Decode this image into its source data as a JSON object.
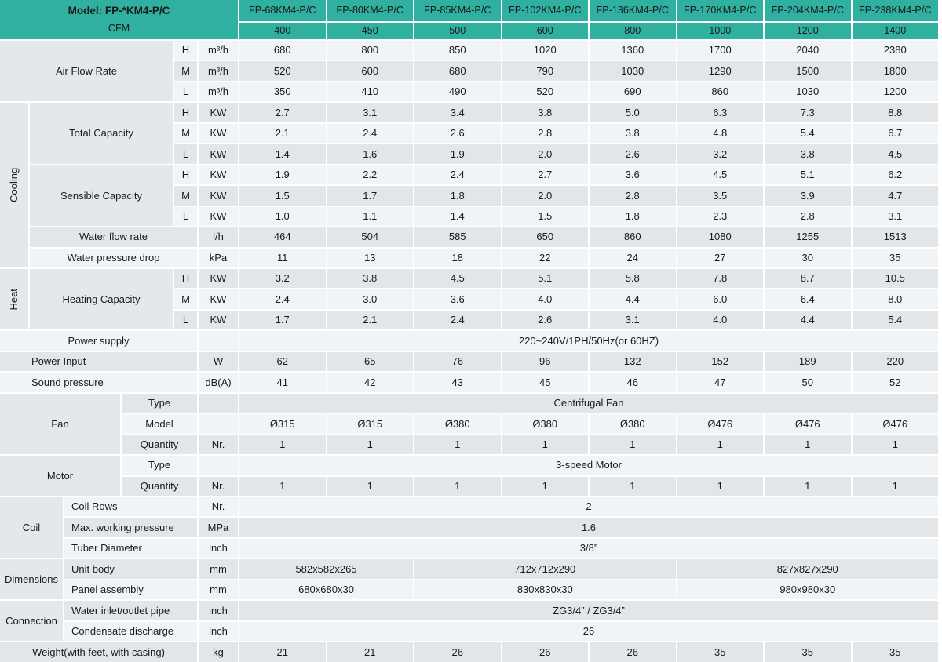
{
  "colors": {
    "header_teal": "#2FB0A0",
    "row_light": "#F0F4F6",
    "row_gray": "#E2E6E9",
    "label_gray": "#E4E8EB",
    "text": "#1A1A1A",
    "grid_line": "#FFFFFF"
  },
  "table": {
    "corner": {
      "model": "Model: FP-*KM4-P/C",
      "cfm": "CFM"
    },
    "model_columns": [
      "FP-68KM4-P/C",
      "FP-80KM4-P/C",
      "FP-85KM4-P/C",
      "FP-102KM4-P/C",
      "FP-136KM4-P/C",
      "FP-170KM4-P/C",
      "FP-204KM4-P/C",
      "FP-238KM4-P/C"
    ],
    "cfm_values": [
      "400",
      "450",
      "500",
      "600",
      "800",
      "1000",
      "1200",
      "1400"
    ],
    "rows": [
      {
        "label": "Air Flow Rate",
        "lspan": "l14",
        "lrows": 3,
        "sub": "H",
        "unit": "m³/h",
        "values": [
          "680",
          "800",
          "850",
          "1020",
          "1360",
          "1700",
          "2040",
          "2380"
        ]
      },
      {
        "sub": "M",
        "unit": "m³/h",
        "values": [
          "520",
          "600",
          "680",
          "790",
          "1030",
          "1290",
          "1500",
          "1800"
        ]
      },
      {
        "sub": "L",
        "unit": "m³/h",
        "values": [
          "350",
          "410",
          "490",
          "520",
          "690",
          "860",
          "1030",
          "1200"
        ]
      },
      {
        "vgroup": "Cooling",
        "vrows": 8,
        "label": "Total Capacity",
        "lspan": "l24",
        "lrows": 3,
        "sub": "H",
        "unit": "KW",
        "values": [
          "2.7",
          "3.1",
          "3.4",
          "3.8",
          "5.0",
          "6.3",
          "7.3",
          "8.8"
        ]
      },
      {
        "sub": "M",
        "unit": "KW",
        "values": [
          "2.1",
          "2.4",
          "2.6",
          "2.8",
          "3.8",
          "4.8",
          "5.4",
          "6.7"
        ]
      },
      {
        "sub": "L",
        "unit": "KW",
        "values": [
          "1.4",
          "1.6",
          "1.9",
          "2.0",
          "2.6",
          "3.2",
          "3.8",
          "4.5"
        ]
      },
      {
        "label": "Sensible Capacity",
        "lspan": "l24",
        "lrows": 3,
        "sub": "H",
        "unit": "KW",
        "values": [
          "1.9",
          "2.2",
          "2.4",
          "2.7",
          "3.6",
          "4.5",
          "5.1",
          "6.2"
        ]
      },
      {
        "sub": "M",
        "unit": "KW",
        "values": [
          "1.5",
          "1.7",
          "1.8",
          "2.0",
          "2.8",
          "3.5",
          "3.9",
          "4.7"
        ]
      },
      {
        "sub": "L",
        "unit": "KW",
        "values": [
          "1.0",
          "1.1",
          "1.4",
          "1.5",
          "1.8",
          "2.3",
          "2.8",
          "3.1"
        ]
      },
      {
        "label": "Water flow rate",
        "lspan": "l25",
        "unit": "l/h",
        "values": [
          "464",
          "504",
          "585",
          "650",
          "860",
          "1080",
          "1255",
          "1513"
        ]
      },
      {
        "label": "Water pressure drop",
        "lspan": "l25",
        "unit": "kPa",
        "values": [
          "11",
          "13",
          "18",
          "22",
          "24",
          "27",
          "30",
          "35"
        ]
      },
      {
        "vgroup": "Heat",
        "vrows": 3,
        "label": "Heating Capacity",
        "lspan": "l24",
        "lrows": 3,
        "sub": "H",
        "unit": "KW",
        "values": [
          "3.2",
          "3.8",
          "4.5",
          "5.1",
          "5.8",
          "7.8",
          "8.7",
          "10.5"
        ]
      },
      {
        "sub": "M",
        "unit": "KW",
        "values": [
          "2.4",
          "3.0",
          "3.6",
          "4.0",
          "4.4",
          "6.0",
          "6.4",
          "8.0"
        ]
      },
      {
        "sub": "L",
        "unit": "KW",
        "values": [
          "1.7",
          "2.1",
          "2.4",
          "2.6",
          "3.1",
          "4.0",
          "4.4",
          "5.4"
        ]
      },
      {
        "label": "Power supply",
        "lspan": "l15",
        "unit": "",
        "mode": "merged",
        "values": [
          "220~240V/1PH/50Hz(or 60HZ)"
        ]
      },
      {
        "label": "Power Input",
        "lspan": "l15",
        "align": "left40",
        "unit": "W",
        "values": [
          "62",
          "65",
          "76",
          "96",
          "132",
          "152",
          "189",
          "220"
        ]
      },
      {
        "label": "Sound pressure",
        "lspan": "l15",
        "align": "left40",
        "unit": "dB(A)",
        "values": [
          "41",
          "42",
          "43",
          "45",
          "46",
          "47",
          "50",
          "52"
        ]
      },
      {
        "hgroup": "Fan",
        "hspan": "g13",
        "hrows": 3,
        "label": "Type",
        "lspan": "l45",
        "unit": "",
        "mode": "merged",
        "values": [
          "Centrifugal Fan"
        ]
      },
      {
        "label": "Model",
        "lspan": "l45",
        "unit": "",
        "values": [
          "Ø315",
          "Ø315",
          "Ø380",
          "Ø380",
          "Ø380",
          "Ø476",
          "Ø476",
          "Ø476"
        ]
      },
      {
        "label": "Quantity",
        "lspan": "l45",
        "unit": "Nr.",
        "values": [
          "1",
          "1",
          "1",
          "1",
          "1",
          "1",
          "1",
          "1"
        ]
      },
      {
        "hgroup": "Motor",
        "hspan": "g13",
        "hrows": 2,
        "label": "Type",
        "lspan": "l45",
        "unit": "",
        "mode": "merged",
        "values": [
          "3-speed Motor"
        ]
      },
      {
        "label": "Quantity",
        "lspan": "l45",
        "unit": "Nr.",
        "values": [
          "1",
          "1",
          "1",
          "1",
          "1",
          "1",
          "1",
          "1"
        ]
      },
      {
        "hgroup": "Coil",
        "hspan": "g12",
        "hrows": 3,
        "label": "Coil Rows",
        "lspan": "l35",
        "align": "left",
        "unit": "Nr.",
        "mode": "merged",
        "values": [
          "2"
        ]
      },
      {
        "label": "Max. working pressure",
        "lspan": "l35",
        "align": "left",
        "unit": "MPa",
        "mode": "merged",
        "values": [
          "1.6"
        ]
      },
      {
        "label": "Tuber Diameter",
        "lspan": "l35",
        "align": "left",
        "unit": "inch",
        "mode": "merged",
        "values": [
          "3/8”"
        ]
      },
      {
        "hgroup": "Dimensions",
        "hspan": "g12",
        "hrows": 2,
        "label": "Unit body",
        "lspan": "l35",
        "align": "left",
        "unit": "mm",
        "mode": "triple",
        "values": [
          "582x582x265",
          "712x712x290",
          "827x827x290"
        ]
      },
      {
        "label": "Panel assembly",
        "lspan": "l35",
        "align": "left",
        "unit": "mm",
        "mode": "triple",
        "values": [
          "680x680x30",
          "830x830x30",
          "980x980x30"
        ]
      },
      {
        "hgroup": "Connection",
        "hspan": "g12",
        "hrows": 2,
        "label": "Water inlet/outlet pipe",
        "lspan": "l35",
        "align": "left",
        "unit": "inch",
        "mode": "merged",
        "values": [
          "ZG3/4” / ZG3/4”"
        ]
      },
      {
        "label": "Condensate discharge",
        "lspan": "l35",
        "align": "left",
        "unit": "inch",
        "mode": "merged",
        "values": [
          "26"
        ]
      },
      {
        "label": "Weight(with feet, with casing)",
        "lspan": "l15",
        "unit": "kg",
        "values": [
          "21",
          "21",
          "26",
          "26",
          "26",
          "35",
          "35",
          "35"
        ]
      }
    ]
  }
}
